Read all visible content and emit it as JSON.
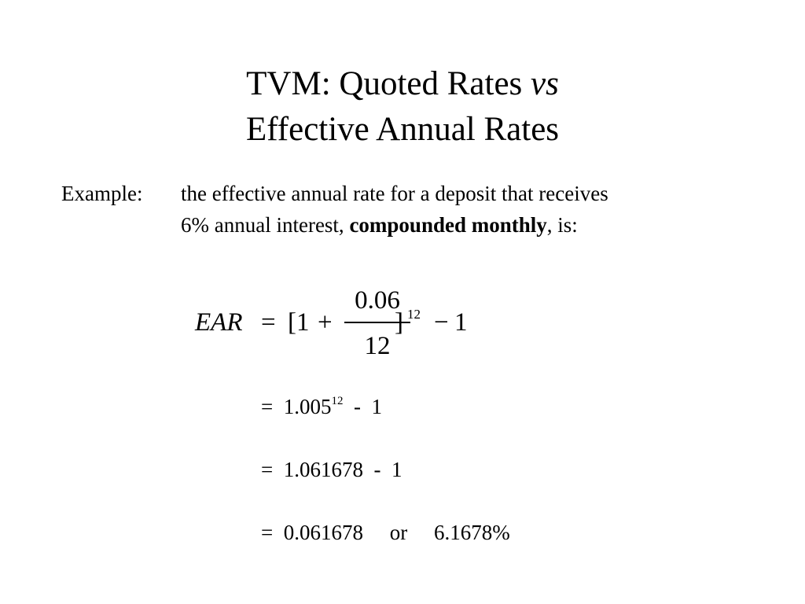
{
  "title": {
    "line1_prefix": "TVM:  Quoted Rates ",
    "line1_italic": "vs",
    "line2": "Effective Annual Rates"
  },
  "example": {
    "label": "Example:",
    "text_line1": "the effective annual rate for a deposit that receives",
    "text_line2_prefix": "6% annual interest, ",
    "text_line2_bold": "compounded monthly",
    "text_line2_suffix": ", is:"
  },
  "formula": {
    "lhs": "EAR",
    "equals": "=",
    "open": "[1",
    "plus": "+",
    "numerator": "0.06",
    "denominator": "12",
    "close": "]",
    "exponent": "12",
    "minus": "−",
    "one": "1"
  },
  "steps": [
    {
      "prefix": "=  1.005",
      "sup": "12",
      "suffix": "  -  1"
    },
    {
      "text": "=  1.061678  -  1"
    },
    {
      "text": "=  0.061678     or     6.1678%"
    }
  ]
}
